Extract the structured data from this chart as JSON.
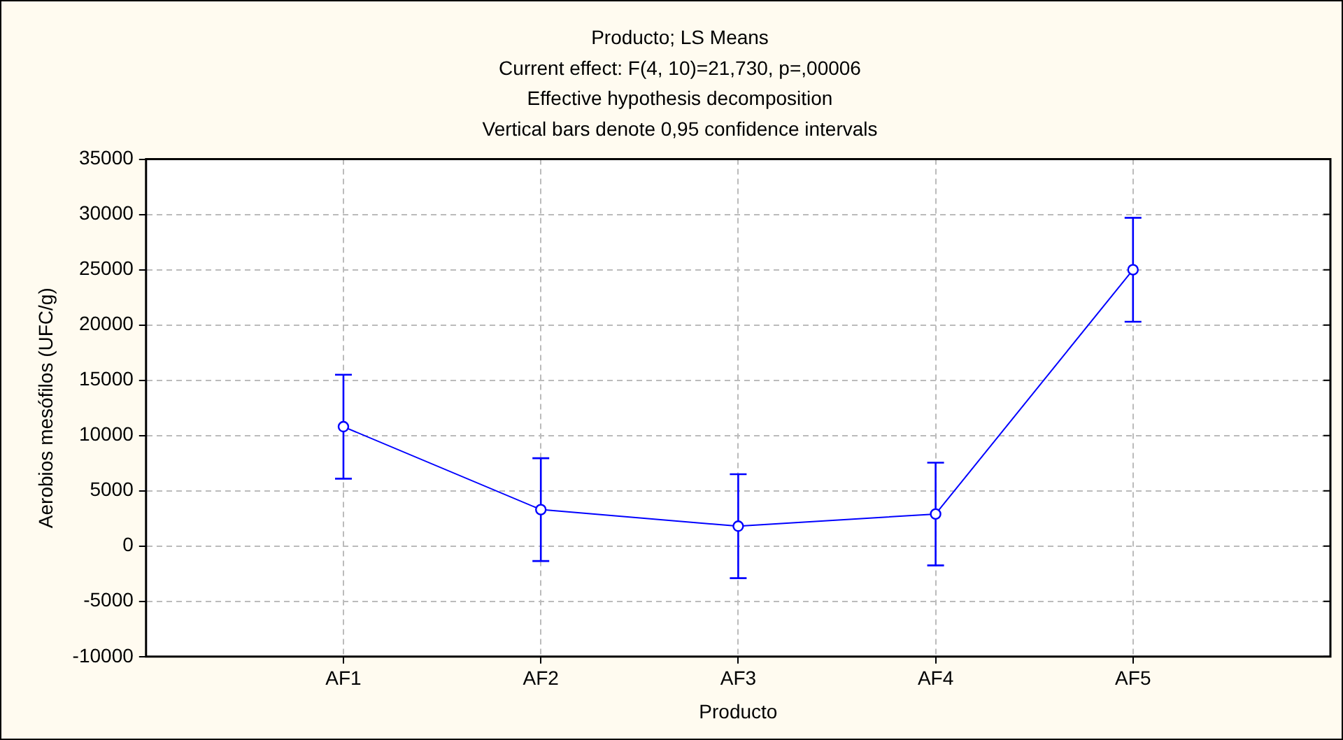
{
  "chart_data": {
    "type": "line",
    "title": "Producto; LS Means",
    "subtitle": "Current effect: F(4, 10)=21,730, p=,00006\nEffective hypothesis decomposition\nVertical bars denote 0,95 confidence intervals",
    "xlabel": "Producto",
    "ylabel": "Aerobios mesófilos (UFC/g)",
    "categories": [
      "AF1",
      "AF2",
      "AF3",
      "AF4",
      "AF5"
    ],
    "series": [
      {
        "color": "#0000ff",
        "values": [
          10800,
          3300,
          1800,
          2900,
          25000
        ],
        "errors": [
          4700,
          4650,
          4700,
          4650,
          4700
        ]
      }
    ],
    "ylim": [
      -10000,
      35000
    ],
    "yticks": [
      -10000,
      -5000,
      0,
      5000,
      10000,
      15000,
      20000,
      25000,
      30000,
      35000
    ],
    "grid": true,
    "marker": "circle",
    "line_style": "solid",
    "legend": false
  }
}
